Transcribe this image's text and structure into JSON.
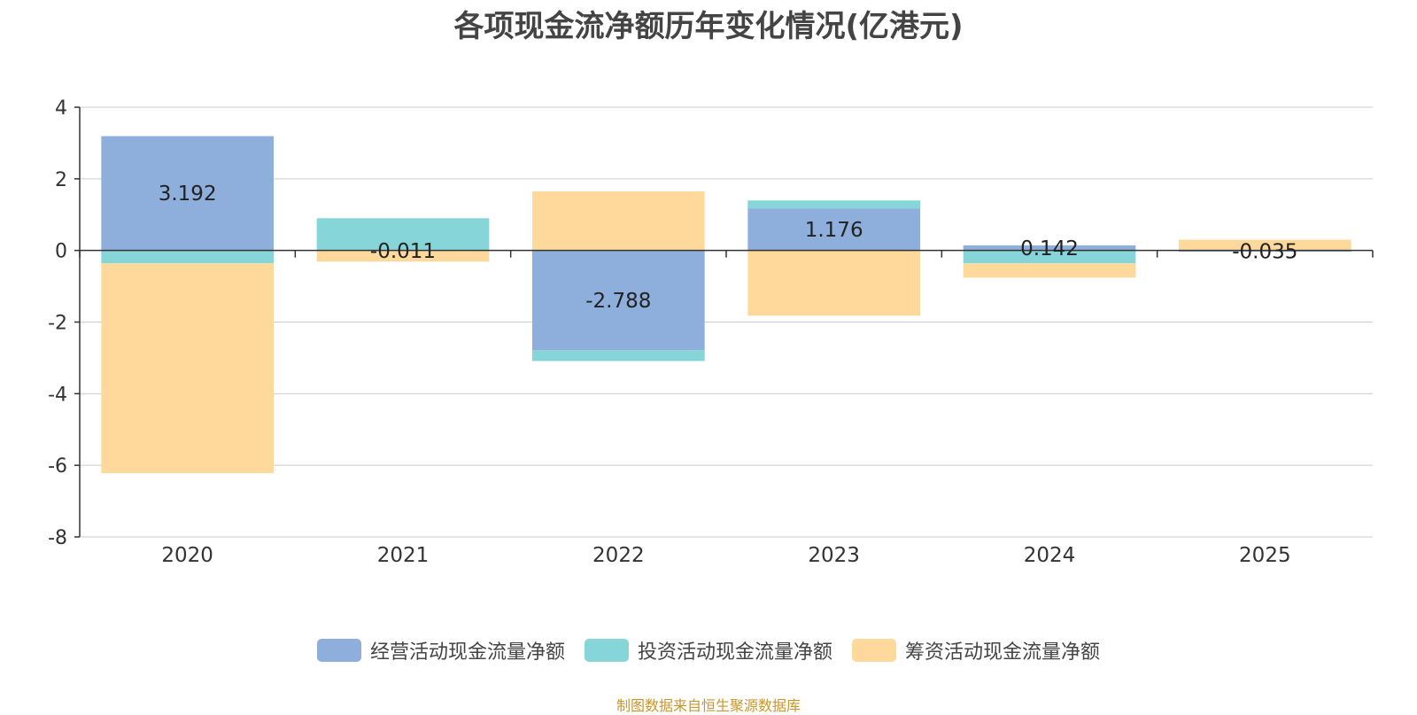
{
  "chart_data": {
    "type": "bar",
    "stacked": true,
    "title": "各项现金流净额历年变化情况(亿港元)",
    "categories": [
      "2020",
      "2021",
      "2022",
      "2023",
      "2024",
      "2025"
    ],
    "series": [
      {
        "name": "经营活动现金流量净额",
        "color": "#8eaedb",
        "values": [
          3.192,
          -0.011,
          -2.788,
          1.176,
          0.142,
          -0.035
        ]
      },
      {
        "name": "投资活动现金流量净额",
        "color": "#86d5d8",
        "values": [
          -0.36,
          0.9,
          -0.3,
          0.22,
          -0.36,
          0.0
        ]
      },
      {
        "name": "筹资活动现金流量净额",
        "color": "#ffd99b",
        "values": [
          -5.86,
          -0.3,
          1.65,
          -1.82,
          -0.4,
          0.3
        ]
      }
    ],
    "data_labels": [
      "3.192",
      "-0.011",
      "-2.788",
      "1.176",
      "0.142",
      "-0.035"
    ],
    "ylim": [
      -8,
      4
    ],
    "yticks": [
      4,
      2,
      0,
      -2,
      -4,
      -6,
      -8
    ],
    "grid": true,
    "legend_position": "bottom"
  },
  "footer": {
    "source": "制图数据来自恒生聚源数据库"
  }
}
